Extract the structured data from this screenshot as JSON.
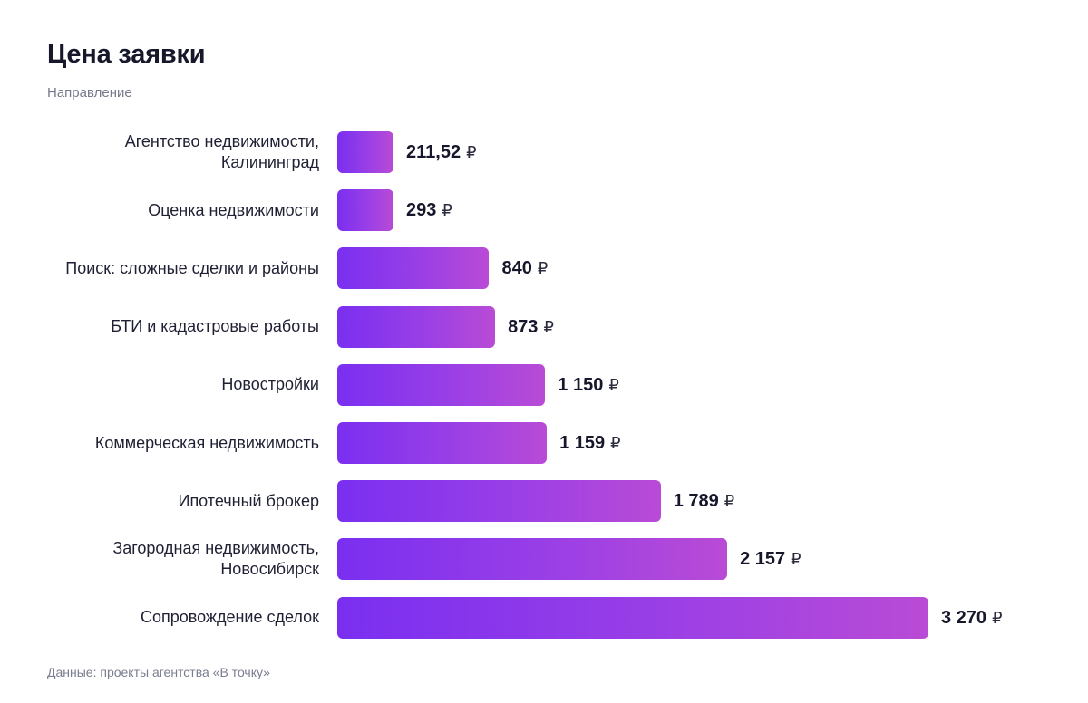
{
  "header": {
    "title": "Цена заявки",
    "subtitle": "Направление"
  },
  "footer": {
    "source": "Данные: проекты агентства «В точку»"
  },
  "colors": {
    "bar_start": "#7a2ff0",
    "bar_end": "#b94bd6"
  },
  "chart_data": {
    "type": "bar",
    "orientation": "horizontal",
    "title": "Цена заявки",
    "subtitle": "Направление",
    "currency": "₽",
    "categories": [
      "Агентство недвижимости,\nКалининград",
      "Оценка недвижимости",
      "Поиск: сложные сделки и районы",
      "БТИ и кадастровые работы",
      "Новостройки",
      "Коммерческая недвижимость",
      "Ипотечный брокер",
      "Загородная недвижимость,\nНовосибирск",
      "Сопровождение сделок"
    ],
    "values": [
      211.52,
      293,
      840,
      873,
      1150,
      1159,
      1789,
      2157,
      3270
    ],
    "value_labels": [
      "211,52",
      "293",
      "840",
      "873",
      "1 150",
      "1 159",
      "1 789",
      "2 157",
      "3 270"
    ],
    "xlim": [
      0,
      3270
    ],
    "grid": false,
    "legend": "none",
    "source": "Данные: проекты агентства «В точку»"
  }
}
